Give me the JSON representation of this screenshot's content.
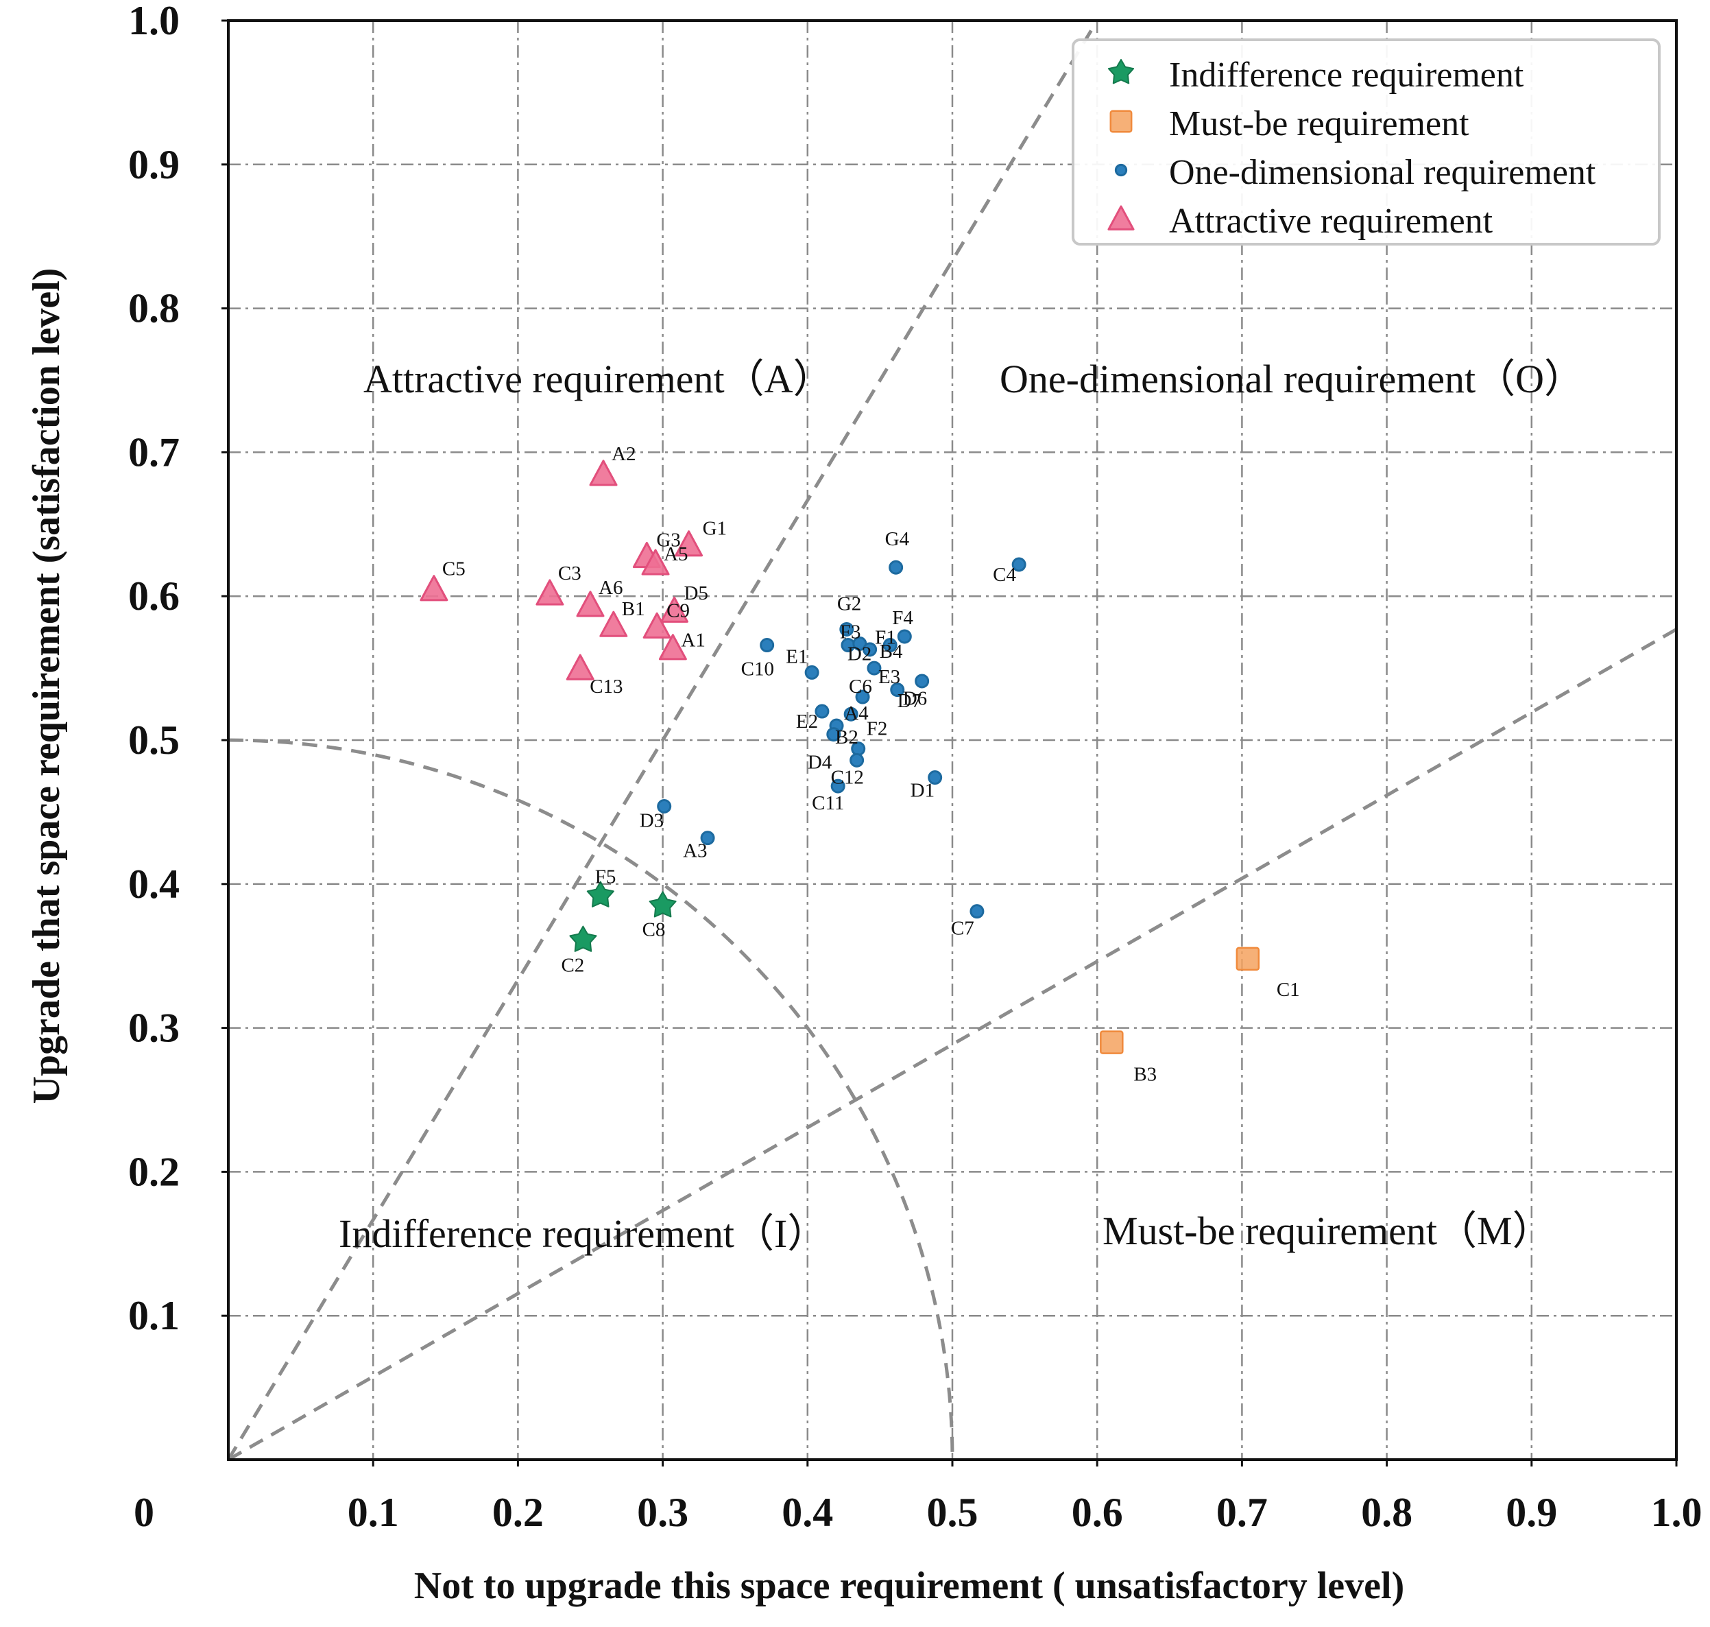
{
  "chart_data": {
    "type": "scatter",
    "xlabel": "Not to upgrade this space requirement ( unsatisfactory level)",
    "ylabel": "Upgrade that space requirement (satisfaction level)",
    "xlim": [
      0,
      1.0
    ],
    "ylim": [
      0,
      1.0
    ],
    "origin_label": "0",
    "x_ticks": [
      {
        "value": 0.1,
        "label": "0.1"
      },
      {
        "value": 0.2,
        "label": "0.2"
      },
      {
        "value": 0.3,
        "label": "0.3"
      },
      {
        "value": 0.4,
        "label": "0.4"
      },
      {
        "value": 0.5,
        "label": "0.5"
      },
      {
        "value": 0.6,
        "label": "0.6"
      },
      {
        "value": 0.7,
        "label": "0.7"
      },
      {
        "value": 0.8,
        "label": "0.8"
      },
      {
        "value": 0.9,
        "label": "0.9"
      },
      {
        "value": 1.0,
        "label": "1.0"
      }
    ],
    "y_ticks": [
      {
        "value": 0.1,
        "label": "0.1"
      },
      {
        "value": 0.2,
        "label": "0.2"
      },
      {
        "value": 0.3,
        "label": "0.3"
      },
      {
        "value": 0.4,
        "label": "0.4"
      },
      {
        "value": 0.5,
        "label": "0.5"
      },
      {
        "value": 0.6,
        "label": "0.6"
      },
      {
        "value": 0.7,
        "label": "0.7"
      },
      {
        "value": 0.8,
        "label": "0.8"
      },
      {
        "value": 0.9,
        "label": "0.9"
      },
      {
        "value": 1.0,
        "label": "1.0"
      }
    ],
    "grid": true,
    "legend_position": "top-right",
    "region_labels": {
      "attractive": "Attractive requirement（A）",
      "one_dimensional": "One-dimensional requirement（O）",
      "indifference": "Indifference requirement（I）",
      "must_be": "Must-be requirement（M）"
    },
    "reference_lines": [
      {
        "kind": "line",
        "from": [
          0,
          0
        ],
        "to": [
          0.6,
          1.0
        ]
      },
      {
        "kind": "line",
        "from": [
          0,
          0
        ],
        "to": [
          1.0,
          0.577
        ]
      },
      {
        "kind": "arc",
        "center": [
          0,
          0
        ],
        "radius": 0.5
      }
    ],
    "series": [
      {
        "name": "Indifference requirement",
        "marker": "star",
        "color": "#1a9a62",
        "points": [
          {
            "label": "F5",
            "x": 0.257,
            "y": 0.392
          },
          {
            "label": "C2",
            "x": 0.245,
            "y": 0.361
          },
          {
            "label": "C8",
            "x": 0.3,
            "y": 0.385
          }
        ]
      },
      {
        "name": "Must-be requirement",
        "marker": "square",
        "color": "#f5a25f",
        "points": [
          {
            "label": "C1",
            "x": 0.704,
            "y": 0.348
          },
          {
            "label": "B3",
            "x": 0.61,
            "y": 0.29
          }
        ]
      },
      {
        "name": "One-dimensional requirement",
        "marker": "circle",
        "color": "#2b7fbc",
        "points": [
          {
            "label": "G4",
            "x": 0.461,
            "y": 0.62
          },
          {
            "label": "C4",
            "x": 0.546,
            "y": 0.622
          },
          {
            "label": "G2",
            "x": 0.427,
            "y": 0.577
          },
          {
            "label": "F3",
            "x": 0.428,
            "y": 0.566
          },
          {
            "label": "F4",
            "x": 0.467,
            "y": 0.572
          },
          {
            "label": "F1",
            "x": 0.457,
            "y": 0.566
          },
          {
            "label": "D2",
            "x": 0.436,
            "y": 0.567
          },
          {
            "label": "B4",
            "x": 0.443,
            "y": 0.563
          },
          {
            "label": "C10",
            "x": 0.372,
            "y": 0.566
          },
          {
            "label": "E1",
            "x": 0.403,
            "y": 0.547
          },
          {
            "label": "E3",
            "x": 0.446,
            "y": 0.55
          },
          {
            "label": "C6",
            "x": 0.438,
            "y": 0.53
          },
          {
            "label": "D7",
            "x": 0.479,
            "y": 0.541
          },
          {
            "label": "D6",
            "x": 0.462,
            "y": 0.535
          },
          {
            "label": "E2",
            "x": 0.41,
            "y": 0.52
          },
          {
            "label": "A4",
            "x": 0.43,
            "y": 0.518
          },
          {
            "label": "B2",
            "x": 0.42,
            "y": 0.51
          },
          {
            "label": "F2",
            "x": 0.435,
            "y": 0.494
          },
          {
            "label": "D4",
            "x": 0.418,
            "y": 0.504
          },
          {
            "label": "C12",
            "x": 0.434,
            "y": 0.486
          },
          {
            "label": "C11",
            "x": 0.421,
            "y": 0.468
          },
          {
            "label": "D1",
            "x": 0.488,
            "y": 0.474
          },
          {
            "label": "D3",
            "x": 0.301,
            "y": 0.454
          },
          {
            "label": "A3",
            "x": 0.331,
            "y": 0.432
          },
          {
            "label": "C7",
            "x": 0.517,
            "y": 0.381
          }
        ]
      },
      {
        "name": "Attractive requirement",
        "marker": "triangle",
        "color": "#ee6f94",
        "points": [
          {
            "label": "A2",
            "x": 0.259,
            "y": 0.685
          },
          {
            "label": "G1",
            "x": 0.318,
            "y": 0.636
          },
          {
            "label": "G3",
            "x": 0.289,
            "y": 0.628
          },
          {
            "label": "A5",
            "x": 0.295,
            "y": 0.623
          },
          {
            "label": "C5",
            "x": 0.142,
            "y": 0.605
          },
          {
            "label": "C3",
            "x": 0.222,
            "y": 0.602
          },
          {
            "label": "A6",
            "x": 0.25,
            "y": 0.594
          },
          {
            "label": "D5",
            "x": 0.308,
            "y": 0.59
          },
          {
            "label": "B1",
            "x": 0.266,
            "y": 0.58
          },
          {
            "label": "C9",
            "x": 0.296,
            "y": 0.579
          },
          {
            "label": "A1",
            "x": 0.307,
            "y": 0.564
          },
          {
            "label": "C13",
            "x": 0.243,
            "y": 0.55
          }
        ]
      }
    ]
  }
}
